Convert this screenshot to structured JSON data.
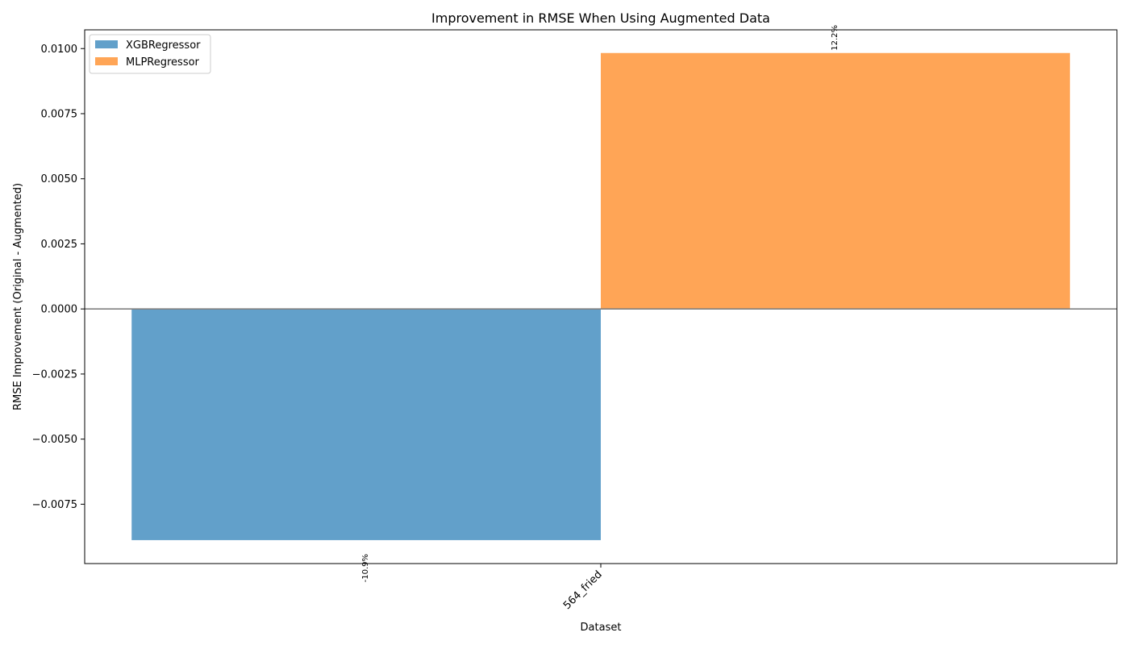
{
  "chart_data": {
    "type": "bar",
    "title": "Improvement in RMSE When Using Augmented Data",
    "xlabel": "Dataset",
    "ylabel": "RMSE Improvement (Original - Augmented)",
    "categories": [
      "564_fried"
    ],
    "series": [
      {
        "name": "XGBRegressor",
        "values": [
          -0.00888
        ],
        "label": "-10.9%",
        "color": "#1f77b4"
      },
      {
        "name": "MLPRegressor",
        "values": [
          0.00983
        ],
        "label": "12.2%",
        "color": "#ff7f0e"
      }
    ],
    "ylim": [
      -0.00978,
      0.01072
    ],
    "yticks": [
      -0.0075,
      -0.005,
      -0.0025,
      0.0,
      0.0025,
      0.005,
      0.0075,
      0.01
    ],
    "ytick_labels": [
      "−0.0075",
      "−0.0050",
      "−0.0025",
      "0.0000",
      "0.0025",
      "0.0050",
      "0.0075",
      "0.0100"
    ],
    "legend": "top-left",
    "grid": false,
    "bar_opacity": 0.7,
    "zero_line_color": "#808080"
  }
}
